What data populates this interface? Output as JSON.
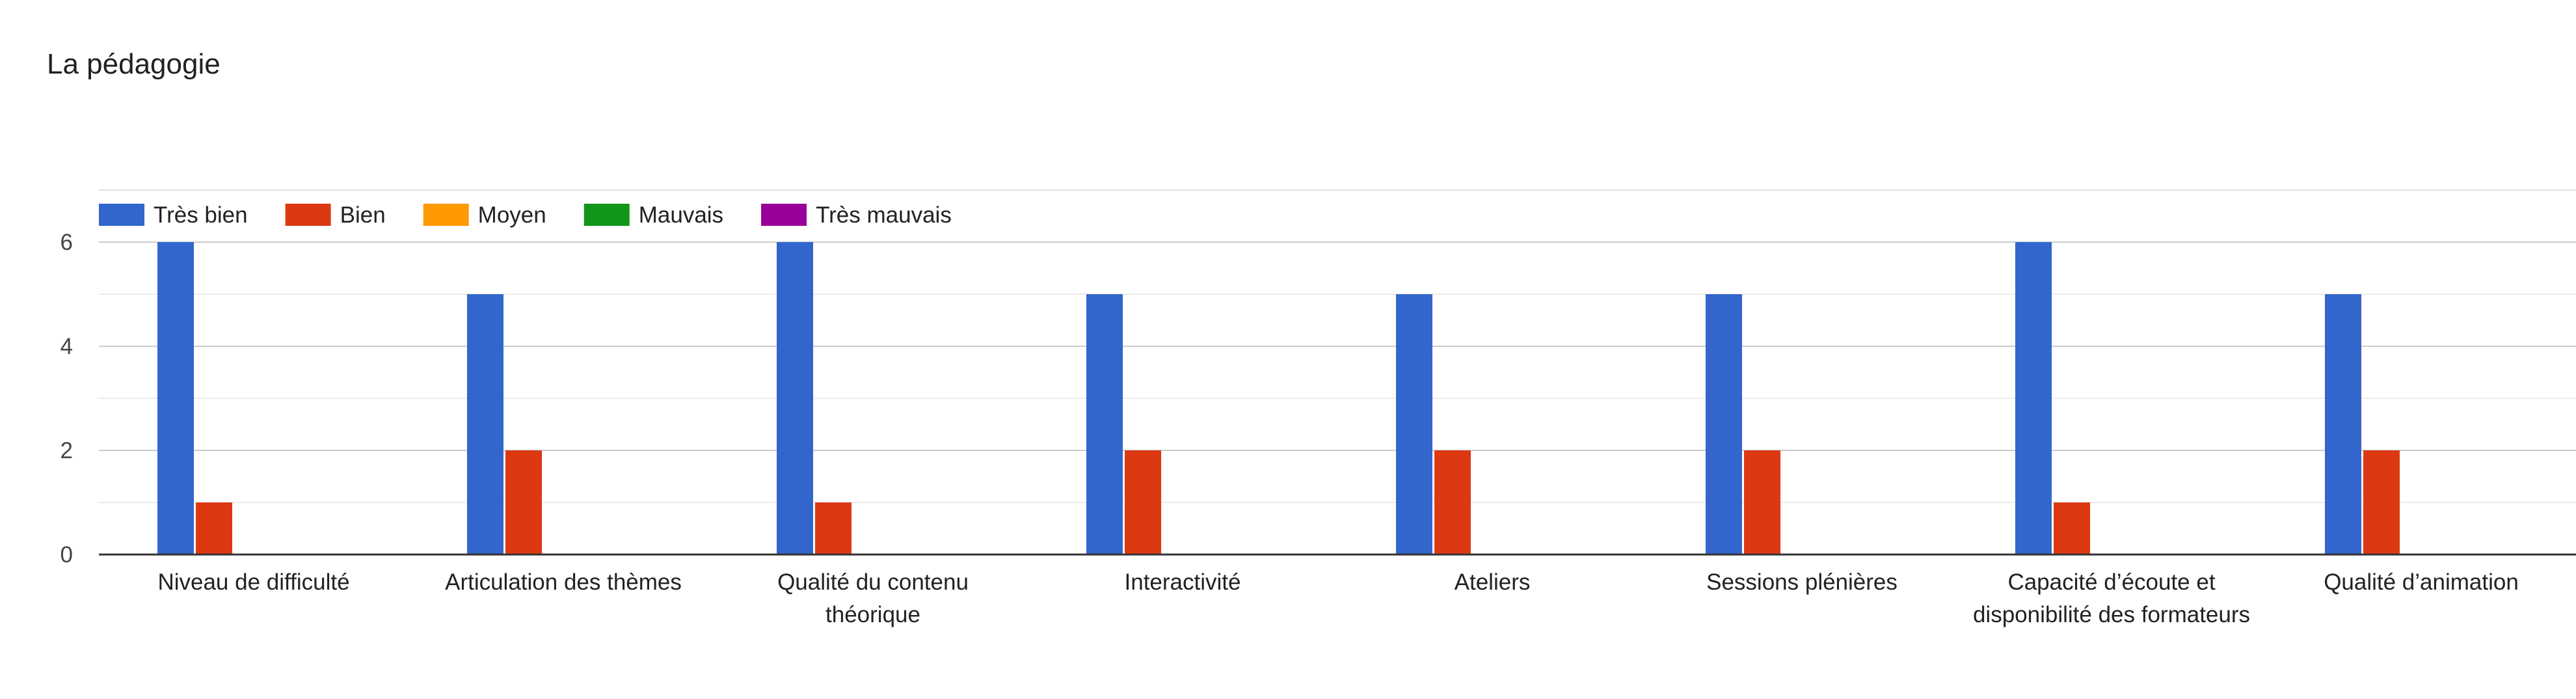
{
  "chart_data": {
    "type": "bar",
    "title": "La pédagogie",
    "xlabel": "",
    "ylabel": "",
    "ylim": [
      0,
      6
    ],
    "yticks": [
      0,
      2,
      4,
      6
    ],
    "grid": true,
    "legend_position": "top-left",
    "categories": [
      [
        "Niveau de difficulté"
      ],
      [
        "Articulation des thèmes"
      ],
      [
        "Qualité du contenu",
        "théorique"
      ],
      [
        "Interactivité"
      ],
      [
        "Ateliers"
      ],
      [
        "Sessions plénières"
      ],
      [
        "Capacité d’écoute et",
        "disponibilité des formateurs"
      ],
      [
        "Qualité d’animation"
      ]
    ],
    "series": [
      {
        "name": "Très bien",
        "color": "#3366cc",
        "values": [
          6,
          5,
          6,
          5,
          5,
          5,
          6,
          5
        ]
      },
      {
        "name": "Bien",
        "color": "#dc3912",
        "values": [
          1,
          2,
          1,
          2,
          2,
          2,
          1,
          2
        ]
      },
      {
        "name": "Moyen",
        "color": "#ff9900",
        "values": [
          0,
          0,
          0,
          0,
          0,
          0,
          0,
          0
        ]
      },
      {
        "name": "Mauvais",
        "color": "#109618",
        "values": [
          0,
          0,
          0,
          0,
          0,
          0,
          0,
          0
        ]
      },
      {
        "name": "Très mauvais",
        "color": "#990099",
        "values": [
          0,
          0,
          0,
          0,
          0,
          0,
          0,
          0
        ]
      }
    ]
  }
}
